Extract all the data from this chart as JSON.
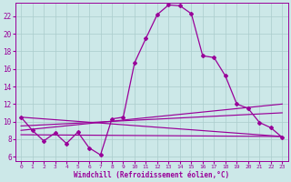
{
  "xlabel": "Windchill (Refroidissement éolien,°C)",
  "xlim": [
    -0.5,
    23.5
  ],
  "ylim": [
    5.5,
    23.5
  ],
  "xticks": [
    0,
    1,
    2,
    3,
    4,
    5,
    6,
    7,
    8,
    9,
    10,
    11,
    12,
    13,
    14,
    15,
    16,
    17,
    18,
    19,
    20,
    21,
    22,
    23
  ],
  "yticks": [
    6,
    8,
    10,
    12,
    14,
    16,
    18,
    20,
    22
  ],
  "background_color": "#cce8e8",
  "grid_color": "#aacccc",
  "line_color": "#990099",
  "main_series": [
    10.5,
    9.0,
    7.8,
    8.7,
    7.5,
    8.8,
    7.0,
    6.2,
    10.3,
    10.5,
    16.7,
    19.5,
    22.2,
    23.3,
    23.2,
    22.3,
    17.5,
    17.3,
    15.2,
    12.0,
    11.5,
    9.9,
    9.3,
    8.2
  ],
  "trend_lines": [
    {
      "x_start": 0,
      "y_start": 10.5,
      "x_end": 23,
      "y_end": 8.3
    },
    {
      "x_start": 0,
      "y_start": 9.5,
      "x_end": 23,
      "y_end": 11.0
    },
    {
      "x_start": 0,
      "y_start": 9.0,
      "x_end": 23,
      "y_end": 12.0
    },
    {
      "x_start": 0,
      "y_start": 8.5,
      "x_end": 23,
      "y_end": 8.3
    }
  ]
}
